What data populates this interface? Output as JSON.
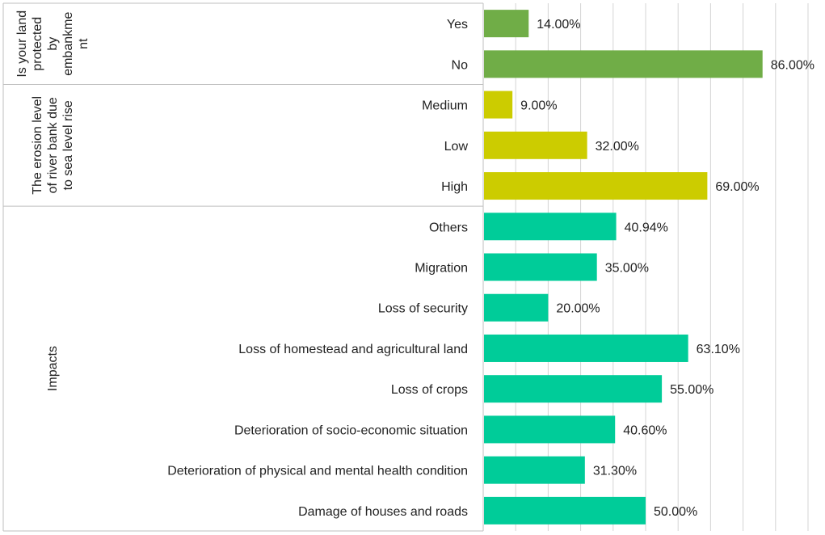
{
  "chart_data": {
    "type": "bar",
    "orientation": "horizontal",
    "xlim": [
      0,
      100
    ],
    "grid": true,
    "value_suffix": "%",
    "groups": [
      {
        "name": "Is your land protected by embankment",
        "label_lines": [
          "Is your land",
          "protected",
          "by",
          "embankme",
          "nt"
        ],
        "color": "#70ad47",
        "items": [
          {
            "label": "Yes",
            "value": 14.0,
            "value_label": "14.00%"
          },
          {
            "label": "No",
            "value": 86.0,
            "value_label": "86.00%"
          }
        ]
      },
      {
        "name": "The erosion level of river bank due to sea level rise",
        "label_lines": [
          "The erosion level",
          "of river bank due",
          "to sea level rise"
        ],
        "color": "#cccc00",
        "items": [
          {
            "label": "Medium",
            "value": 9.0,
            "value_label": "9.00%"
          },
          {
            "label": "Low",
            "value": 32.0,
            "value_label": "32.00%"
          },
          {
            "label": "High",
            "value": 69.0,
            "value_label": "69.00%"
          }
        ]
      },
      {
        "name": "Impacts",
        "label_lines": [
          "Impacts"
        ],
        "color": "#00cc99",
        "items": [
          {
            "label": "Others",
            "value": 40.94,
            "value_label": "40.94%"
          },
          {
            "label": "Migration",
            "value": 35.0,
            "value_label": "35.00%"
          },
          {
            "label": "Loss of security",
            "value": 20.0,
            "value_label": "20.00%"
          },
          {
            "label": "Loss of homestead and agricultural land",
            "value": 63.1,
            "value_label": "63.10%"
          },
          {
            "label": "Loss of crops",
            "value": 55.0,
            "value_label": "55.00%"
          },
          {
            "label": "Deterioration of socio-economic situation",
            "value": 40.6,
            "value_label": "40.60%"
          },
          {
            "label": "Deterioration of physical and mental health condition",
            "value": 31.3,
            "value_label": "31.30%"
          },
          {
            "label": "Damage of houses and roads",
            "value": 50.0,
            "value_label": "50.00%"
          }
        ]
      }
    ]
  }
}
